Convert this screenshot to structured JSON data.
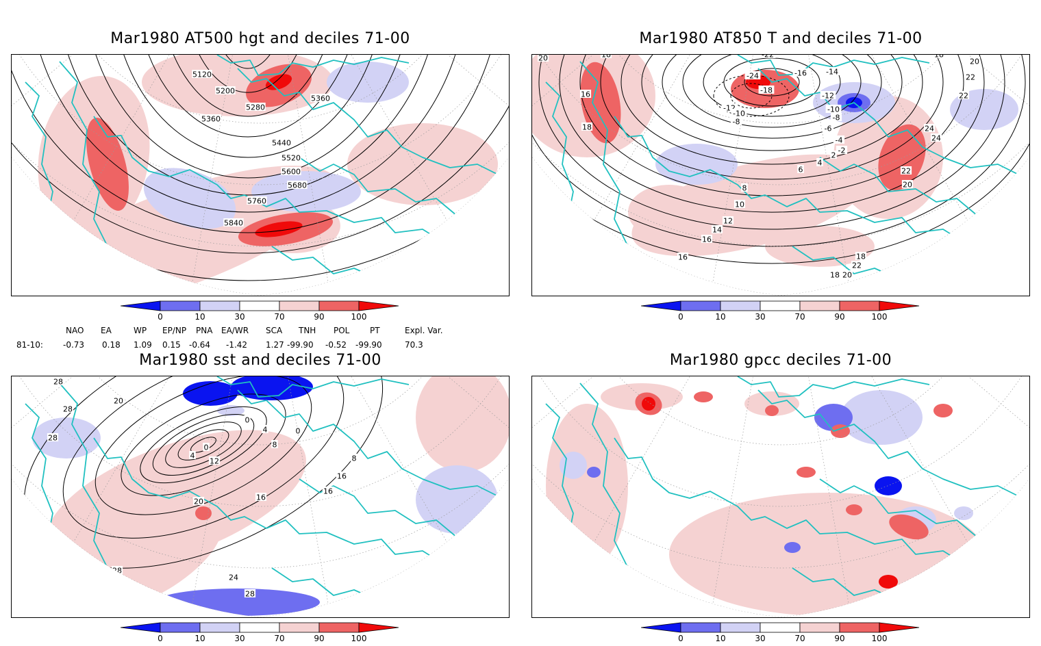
{
  "panels": [
    {
      "title": "Mar1980 AT500 hgt and deciles 71-00",
      "contour_labels": [
        "5120",
        "5200",
        "5280",
        "5360",
        "5360",
        "5440",
        "5520",
        "5600",
        "5680",
        "5760",
        "5840"
      ]
    },
    {
      "title": "Mar1980 AT850 T and deciles 71-00",
      "contour_labels": [
        "20",
        "18",
        "16",
        "18",
        "-22",
        "-24",
        "-18",
        "-16",
        "-14",
        "-12",
        "-12",
        "-10",
        "-10",
        "-8",
        "-8",
        "-6",
        "-4",
        "-2",
        "2",
        "4",
        "6",
        "8",
        "10",
        "12",
        "14",
        "16",
        "16",
        "18",
        "20",
        "22",
        "22",
        "24",
        "24",
        "22",
        "20",
        "18",
        "22",
        "20",
        "18"
      ]
    },
    {
      "title": "Mar1980 sst and deciles 71-00",
      "contour_labels": [
        "28",
        "28",
        "28",
        "20",
        "0",
        "4",
        "8",
        "12",
        "4",
        "0",
        "16",
        "20",
        "24",
        "28",
        "28",
        "16",
        "16",
        "8",
        "0"
      ]
    },
    {
      "title": "Mar1980 gpcc deciles 71-00",
      "contour_labels": []
    }
  ],
  "colorbar": {
    "ticks": [
      "0",
      "10",
      "30",
      "70",
      "90",
      "100"
    ],
    "colors": [
      "#0a14f0",
      "#6e6ef0",
      "#d2d2f5",
      "#ffffff",
      "#f5d2d2",
      "#ee6464",
      "#f00a0a"
    ]
  },
  "indices": {
    "headers": [
      "NAO",
      "EA",
      "WP",
      "EP/NP",
      "PNA",
      "EA/WR",
      "SCA",
      "TNH",
      "POL",
      "PT",
      "Expl. Var."
    ],
    "row_label": "81-10:",
    "values": [
      "-0.73",
      "0.18",
      "1.09",
      "0.15",
      "-0.64",
      "-1.42",
      "1.27",
      "-99.90",
      "-0.52",
      "-99.90",
      "70.3"
    ]
  },
  "colors": {
    "coast": "#20c0c0",
    "contour": "#000000",
    "grid": "#9a9a9a"
  }
}
